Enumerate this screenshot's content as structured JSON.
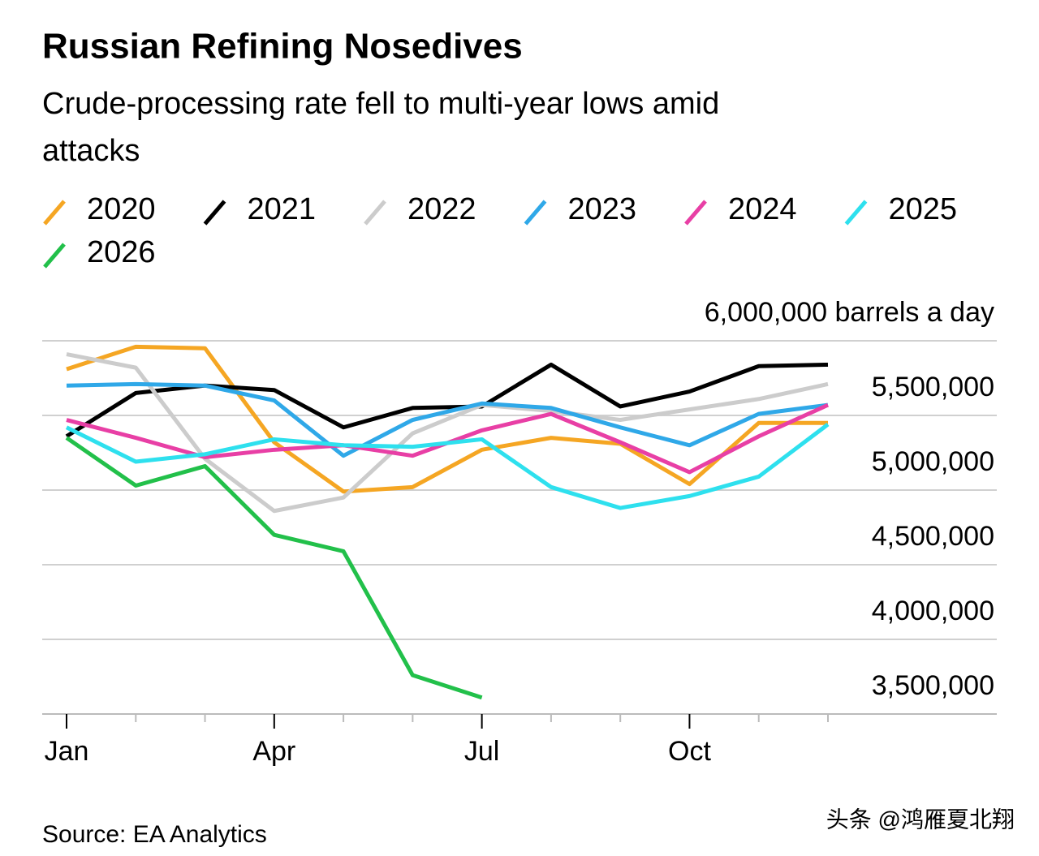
{
  "chart_data": {
    "type": "line",
    "title": "Russian Refining Nosedives",
    "subtitle": "Crude-processing rate fell to multi-year lows amid attacks",
    "source": "Source: EA Analytics",
    "watermark": "头条 @鸿雁夏北翔",
    "categories": [
      "Jan",
      null,
      null,
      "Apr",
      null,
      null,
      "Jul",
      null,
      null,
      "Oct",
      null,
      null
    ],
    "ylim": [
      3500000,
      6000000
    ],
    "yticks": [
      {
        "value": 3500000,
        "label": "3,500,000"
      },
      {
        "value": 4000000,
        "label": "4,000,000"
      },
      {
        "value": 4500000,
        "label": "4,500,000"
      },
      {
        "value": 5000000,
        "label": "5,000,000"
      },
      {
        "value": 5500000,
        "label": "5,500,000"
      },
      {
        "value": 6000000,
        "label": "6,000,000 barrels a day"
      }
    ],
    "grid": true,
    "series": [
      {
        "name": "2020",
        "color": "#f5a623",
        "values": [
          5810000,
          5960000,
          5950000,
          5320000,
          4990000,
          5020000,
          5270000,
          5350000,
          5310000,
          5040000,
          5450000,
          5450000
        ]
      },
      {
        "name": "2021",
        "color": "#000000",
        "values": [
          5360000,
          5650000,
          5700000,
          5670000,
          5420000,
          5550000,
          5560000,
          5840000,
          5560000,
          5660000,
          5830000,
          5840000
        ]
      },
      {
        "name": "2022",
        "color": "#cccccc",
        "values": [
          5910000,
          5820000,
          5210000,
          4860000,
          4950000,
          5380000,
          5570000,
          5530000,
          5470000,
          5540000,
          5610000,
          5710000
        ]
      },
      {
        "name": "2023",
        "color": "#2fa8e8",
        "values": [
          5700000,
          5710000,
          5700000,
          5600000,
          5230000,
          5470000,
          5580000,
          5550000,
          5420000,
          5300000,
          5510000,
          5570000
        ]
      },
      {
        "name": "2024",
        "color": "#e83fa5",
        "values": [
          5470000,
          5350000,
          5220000,
          5270000,
          5300000,
          5230000,
          5400000,
          5510000,
          5320000,
          5120000,
          5360000,
          5570000
        ]
      },
      {
        "name": "2025",
        "color": "#2ee0ee",
        "values": [
          5420000,
          5190000,
          5240000,
          5340000,
          5300000,
          5290000,
          5340000,
          5020000,
          4880000,
          4960000,
          5090000,
          5440000
        ]
      },
      {
        "name": "2026",
        "color": "#22c04a",
        "values": [
          5350000,
          5030000,
          5160000,
          4700000,
          4590000,
          3760000,
          3610000,
          null,
          null,
          null,
          null,
          null
        ]
      }
    ]
  }
}
